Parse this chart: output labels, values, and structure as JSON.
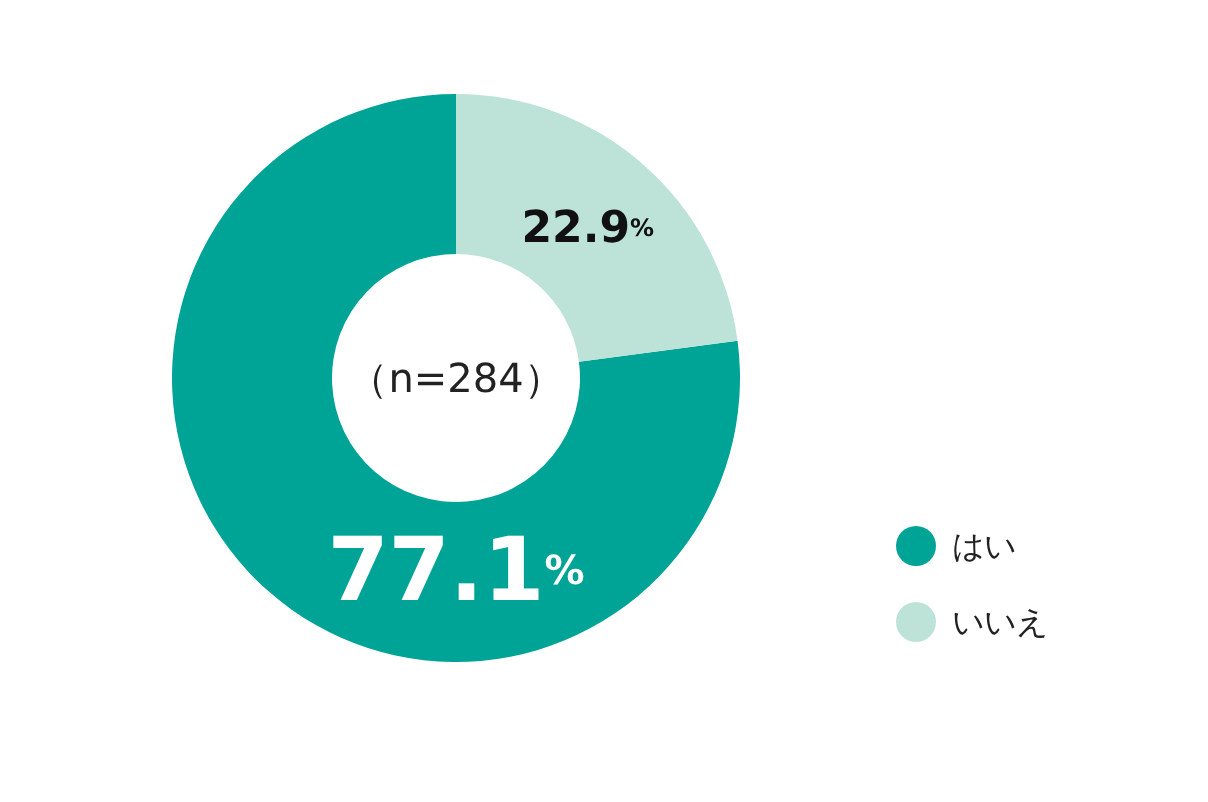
{
  "chart_data": {
    "type": "donut",
    "categories": [
      "はい",
      "いいえ"
    ],
    "values": [
      77.1,
      22.9
    ],
    "colors": [
      "#00a497",
      "#bde3d8"
    ],
    "value_labels": [
      "77.1%",
      "22.9%"
    ],
    "annotations": [
      "（n=284）"
    ],
    "legend": "right"
  }
}
